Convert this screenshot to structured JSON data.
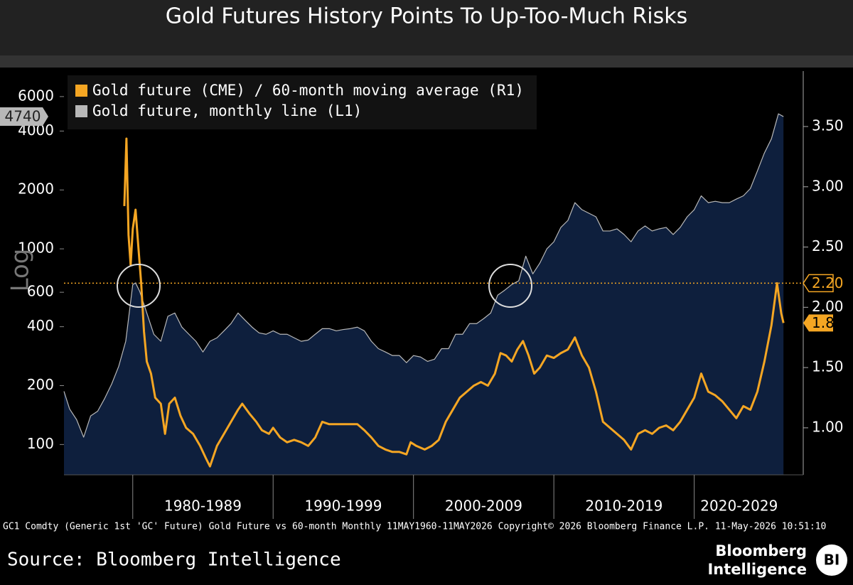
{
  "chart_data": {
    "type": "line",
    "title": "Gold Futures History Points To Up-Too-Much Risks",
    "y_label": "Log",
    "log_y": true,
    "area_color": "#0e1f3d",
    "xlim": [
      1975.1,
      2026.4
    ],
    "xticks": [
      1980,
      1990,
      2000,
      2010,
      2020
    ],
    "x_periods": [
      {
        "start": 1980,
        "end": 1990,
        "label": "1980-1989"
      },
      {
        "start": 1990,
        "end": 2000,
        "label": "1990-1999"
      },
      {
        "start": 2000,
        "end": 2010,
        "label": "2000-2009"
      },
      {
        "start": 2010,
        "end": 2020,
        "label": "2010-2019"
      },
      {
        "start": 2020,
        "end": 2030,
        "label": "2020-2029"
      }
    ],
    "ylim": [
      70,
      8100
    ],
    "yticks": [
      100,
      200,
      400,
      600,
      1000,
      2000,
      4000,
      6000
    ],
    "y2lim": [
      0.61,
      3.96
    ],
    "y2ticks": [
      {
        "value": 1,
        "label": "1.00"
      },
      {
        "value": 1.5,
        "label": "1.50"
      },
      {
        "value": 2,
        "label": "2.00"
      },
      {
        "value": 2.5,
        "label": "2.50"
      },
      {
        "value": 3,
        "label": "3.00"
      },
      {
        "value": 3.5,
        "label": "3.50"
      }
    ],
    "reference_line": {
      "value": 2.2,
      "label": "2.20",
      "axis": "y2",
      "color": "#f5a623"
    },
    "series": [
      {
        "name": "Gold future (CME) / 60-month moving average (R1)",
        "color": "#f5a623",
        "axis": "y2",
        "x": [
          1979.4,
          1979.55,
          1979.7,
          1979.85,
          1980.0,
          1980.2,
          1980.4,
          1980.6,
          1980.8,
          1981.0,
          1981.3,
          1981.6,
          1982.0,
          1982.3,
          1982.6,
          1983.0,
          1983.4,
          1983.8,
          1984.3,
          1984.8,
          1985.2,
          1985.5,
          1986.0,
          1986.5,
          1987.0,
          1987.5,
          1987.8,
          1988.3,
          1988.8,
          1989.2,
          1989.7,
          1990.0,
          1990.5,
          1991.0,
          1991.5,
          1992.0,
          1992.5,
          1993.0,
          1993.5,
          1994.0,
          1995.0,
          1996.0,
          1996.5,
          1997.0,
          1997.5,
          1998.0,
          1998.5,
          1999.0,
          1999.5,
          1999.8,
          2000.2,
          2000.8,
          2001.3,
          2001.8,
          2002.3,
          2002.8,
          2003.3,
          2003.8,
          2004.3,
          2004.8,
          2005.3,
          2005.8,
          2006.2,
          2006.6,
          2007.0,
          2007.4,
          2007.8,
          2008.2,
          2008.6,
          2009.0,
          2009.5,
          2010.0,
          2010.5,
          2011.0,
          2011.5,
          2012.0,
          2012.5,
          2013.0,
          2013.5,
          2014.0,
          2014.5,
          2015.0,
          2015.5,
          2016.0,
          2016.5,
          2017.0,
          2017.5,
          2018.0,
          2018.5,
          2019.0,
          2019.5,
          2020.0,
          2020.5,
          2021.0,
          2021.5,
          2022.0,
          2022.5,
          2023.0,
          2023.5,
          2024.0,
          2024.5,
          2025.0,
          2025.5,
          2025.9,
          2026.2,
          2026.36
        ],
        "values": [
          2.84,
          3.4,
          2.6,
          2.35,
          2.65,
          2.81,
          2.5,
          2.2,
          1.8,
          1.55,
          1.45,
          1.25,
          1.2,
          0.95,
          1.2,
          1.25,
          1.1,
          1.0,
          0.95,
          0.85,
          0.75,
          0.68,
          0.85,
          0.95,
          1.05,
          1.15,
          1.2,
          1.12,
          1.05,
          0.98,
          0.95,
          1.0,
          0.92,
          0.88,
          0.9,
          0.88,
          0.85,
          0.92,
          1.05,
          1.03,
          1.03,
          1.03,
          0.98,
          0.92,
          0.85,
          0.82,
          0.8,
          0.8,
          0.78,
          0.88,
          0.85,
          0.82,
          0.85,
          0.9,
          1.05,
          1.15,
          1.25,
          1.3,
          1.35,
          1.38,
          1.35,
          1.45,
          1.62,
          1.6,
          1.55,
          1.65,
          1.72,
          1.6,
          1.45,
          1.5,
          1.6,
          1.58,
          1.62,
          1.65,
          1.75,
          1.6,
          1.5,
          1.3,
          1.05,
          1.0,
          0.95,
          0.9,
          0.82,
          0.95,
          0.98,
          0.95,
          1.0,
          1.02,
          0.98,
          1.05,
          1.15,
          1.25,
          1.45,
          1.3,
          1.27,
          1.22,
          1.15,
          1.08,
          1.18,
          1.15,
          1.3,
          1.55,
          1.85,
          2.2,
          1.95,
          1.87
        ]
      },
      {
        "name": "Gold future, monthly line (L1)",
        "color": "#b8b8b8",
        "axis": "y",
        "x": [
          1975.1,
          1975.5,
          1976.0,
          1976.5,
          1977.0,
          1977.5,
          1978.0,
          1978.5,
          1979.0,
          1979.5,
          1980.0,
          1980.2,
          1980.5,
          1981.0,
          1981.5,
          1982.0,
          1982.5,
          1983.0,
          1983.5,
          1984.0,
          1984.5,
          1985.0,
          1985.5,
          1986.0,
          1986.5,
          1987.0,
          1987.5,
          1988.0,
          1988.5,
          1989.0,
          1989.5,
          1990.0,
          1990.5,
          1991.0,
          1991.5,
          1992.0,
          1992.5,
          1993.0,
          1993.5,
          1994.0,
          1994.5,
          1995.0,
          1995.5,
          1996.0,
          1996.5,
          1997.0,
          1997.5,
          1998.0,
          1998.5,
          1999.0,
          1999.5,
          2000.0,
          2000.5,
          2001.0,
          2001.5,
          2002.0,
          2002.5,
          2003.0,
          2003.5,
          2004.0,
          2004.5,
          2005.0,
          2005.5,
          2006.0,
          2006.5,
          2007.0,
          2007.5,
          2008.0,
          2008.5,
          2009.0,
          2009.5,
          2010.0,
          2010.5,
          2011.0,
          2011.5,
          2012.0,
          2012.5,
          2013.0,
          2013.5,
          2014.0,
          2014.5,
          2015.0,
          2015.5,
          2016.0,
          2016.5,
          2017.0,
          2017.5,
          2018.0,
          2018.5,
          2019.0,
          2019.5,
          2020.0,
          2020.5,
          2021.0,
          2021.5,
          2022.0,
          2022.5,
          2023.0,
          2023.5,
          2024.0,
          2024.5,
          2025.0,
          2025.5,
          2026.0,
          2026.36
        ],
        "values": [
          187,
          152,
          134,
          109,
          140,
          148,
          172,
          204,
          251,
          337,
          657,
          670,
          605,
          470,
          366,
          337,
          452,
          470,
          398,
          366,
          337,
          297,
          337,
          351,
          381,
          415,
          470,
          432,
          398,
          372,
          366,
          381,
          366,
          366,
          351,
          337,
          342,
          366,
          391,
          391,
          381,
          387,
          391,
          398,
          381,
          337,
          309,
          297,
          285,
          285,
          262,
          285,
          280,
          266,
          273,
          309,
          309,
          366,
          366,
          415,
          415,
          440,
          470,
          580,
          615,
          657,
          687,
          918,
          745,
          845,
          1000,
          1087,
          1287,
          1397,
          1722,
          1585,
          1520,
          1458,
          1234,
          1234,
          1265,
          1184,
          1087,
          1234,
          1309,
          1234,
          1265,
          1287,
          1184,
          1287,
          1458,
          1585,
          1866,
          1722,
          1750,
          1722,
          1722,
          1796,
          1866,
          2033,
          2500,
          3090,
          3650,
          4900,
          4740
        ]
      }
    ]
  },
  "footer": {
    "note": "GC1 Comdty (Generic 1st 'GC' Future) Gold Future vs 60-month Monthly 11MAY1960-11MAY2026  Copyright© 2026 Bloomberg Finance L.P.  11-May-2026 10:51:10",
    "source": "Source: Bloomberg Intelligence",
    "brand": [
      "Bloomberg",
      "Intelligence"
    ],
    "logo": "BI"
  }
}
